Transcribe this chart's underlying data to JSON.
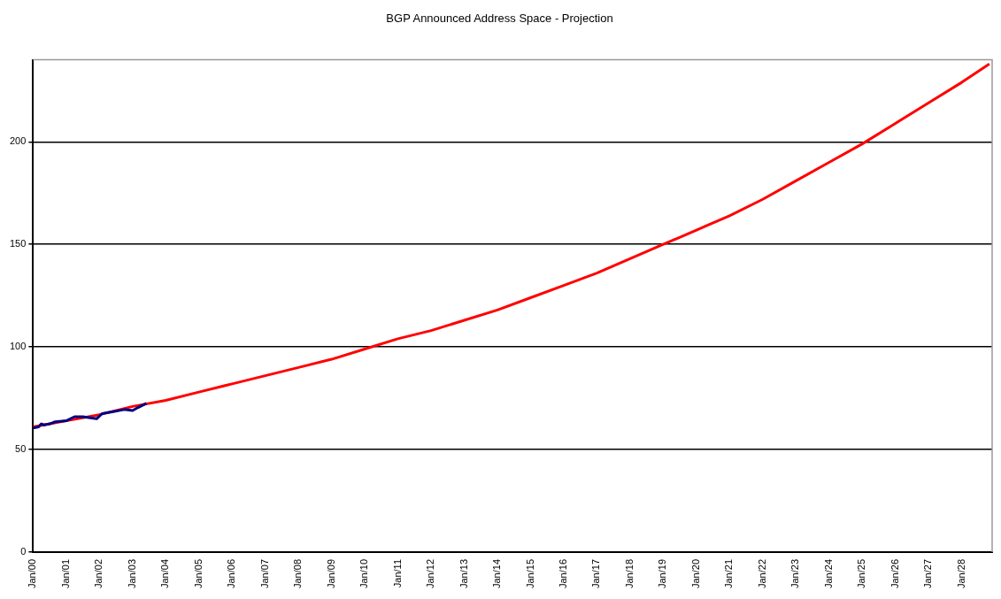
{
  "chart_data": {
    "type": "line",
    "title": "BGP Announced Address Space - Projection",
    "series": [
      {
        "color": "#ff0000",
        "x": [
          "2000-01",
          "2001-01",
          "2002-01",
          "2003-01",
          "2004-01",
          "2005-01",
          "2006-01",
          "2007-01",
          "2008-01",
          "2009-01",
          "2010-01",
          "2011-01",
          "2012-01",
          "2013-01",
          "2014-01",
          "2015-01",
          "2016-01",
          "2017-01",
          "2018-01",
          "2019-01",
          "2020-01",
          "2021-01",
          "2022-01",
          "2023-01",
          "2024-01",
          "2025-01",
          "2026-01",
          "2027-01",
          "2028-01",
          "2028-11"
        ],
        "values": [
          61,
          64,
          67,
          71,
          74,
          78,
          82,
          86,
          90,
          94,
          99,
          104,
          108,
          113,
          118,
          124,
          130,
          136,
          143,
          150,
          157,
          164,
          172,
          181,
          190,
          199,
          209,
          219,
          229,
          238
        ]
      },
      {
        "color": "#000080",
        "x": [
          "2000-01",
          "2000-03",
          "2000-04",
          "2000-05",
          "2000-07",
          "2000-09",
          "2001-01",
          "2001-04",
          "2001-07",
          "2001-12",
          "2002-02",
          "2002-06",
          "2002-10",
          "2003-01",
          "2003-03",
          "2003-06"
        ],
        "values": [
          60.5,
          61,
          62.5,
          62,
          62.5,
          63.5,
          64,
          66,
          66,
          65,
          67.5,
          68.5,
          69.5,
          69,
          70.5,
          72.5
        ]
      }
    ],
    "xlim": [
      "2000-01",
      "2028-12"
    ],
    "xticks": [
      {
        "value": "2000-01",
        "label": "Jan/00"
      },
      {
        "value": "2001-01",
        "label": "Jan/01"
      },
      {
        "value": "2002-01",
        "label": "Jan/02"
      },
      {
        "value": "2003-01",
        "label": "Jan/03"
      },
      {
        "value": "2004-01",
        "label": "Jan/04"
      },
      {
        "value": "2005-01",
        "label": "Jan/05"
      },
      {
        "value": "2006-01",
        "label": "Jan/06"
      },
      {
        "value": "2007-01",
        "label": "Jan/07"
      },
      {
        "value": "2008-01",
        "label": "Jan/08"
      },
      {
        "value": "2009-01",
        "label": "Jan/09"
      },
      {
        "value": "2010-01",
        "label": "Jan/10"
      },
      {
        "value": "2011-01",
        "label": "Jan/11"
      },
      {
        "value": "2012-01",
        "label": "Jan/12"
      },
      {
        "value": "2013-01",
        "label": "Jan/13"
      },
      {
        "value": "2014-01",
        "label": "Jan/14"
      },
      {
        "value": "2015-01",
        "label": "Jan/15"
      },
      {
        "value": "2016-01",
        "label": "Jan/16"
      },
      {
        "value": "2017-01",
        "label": "Jan/17"
      },
      {
        "value": "2018-01",
        "label": "Jan/18"
      },
      {
        "value": "2019-01",
        "label": "Jan/19"
      },
      {
        "value": "2020-01",
        "label": "Jan/20"
      },
      {
        "value": "2021-01",
        "label": "Jan/21"
      },
      {
        "value": "2022-01",
        "label": "Jan/22"
      },
      {
        "value": "2023-01",
        "label": "Jan/23"
      },
      {
        "value": "2024-01",
        "label": "Jan/24"
      },
      {
        "value": "2025-01",
        "label": "Jan/25"
      },
      {
        "value": "2026-01",
        "label": "Jan/26"
      },
      {
        "value": "2027-01",
        "label": "Jan/27"
      },
      {
        "value": "2028-01",
        "label": "Jan/28"
      }
    ],
    "ylim": [
      0,
      240
    ],
    "yticks": [
      0,
      50,
      100,
      150,
      200
    ],
    "grid": "y",
    "legend": false,
    "marker": "none",
    "line_style": "solid"
  }
}
